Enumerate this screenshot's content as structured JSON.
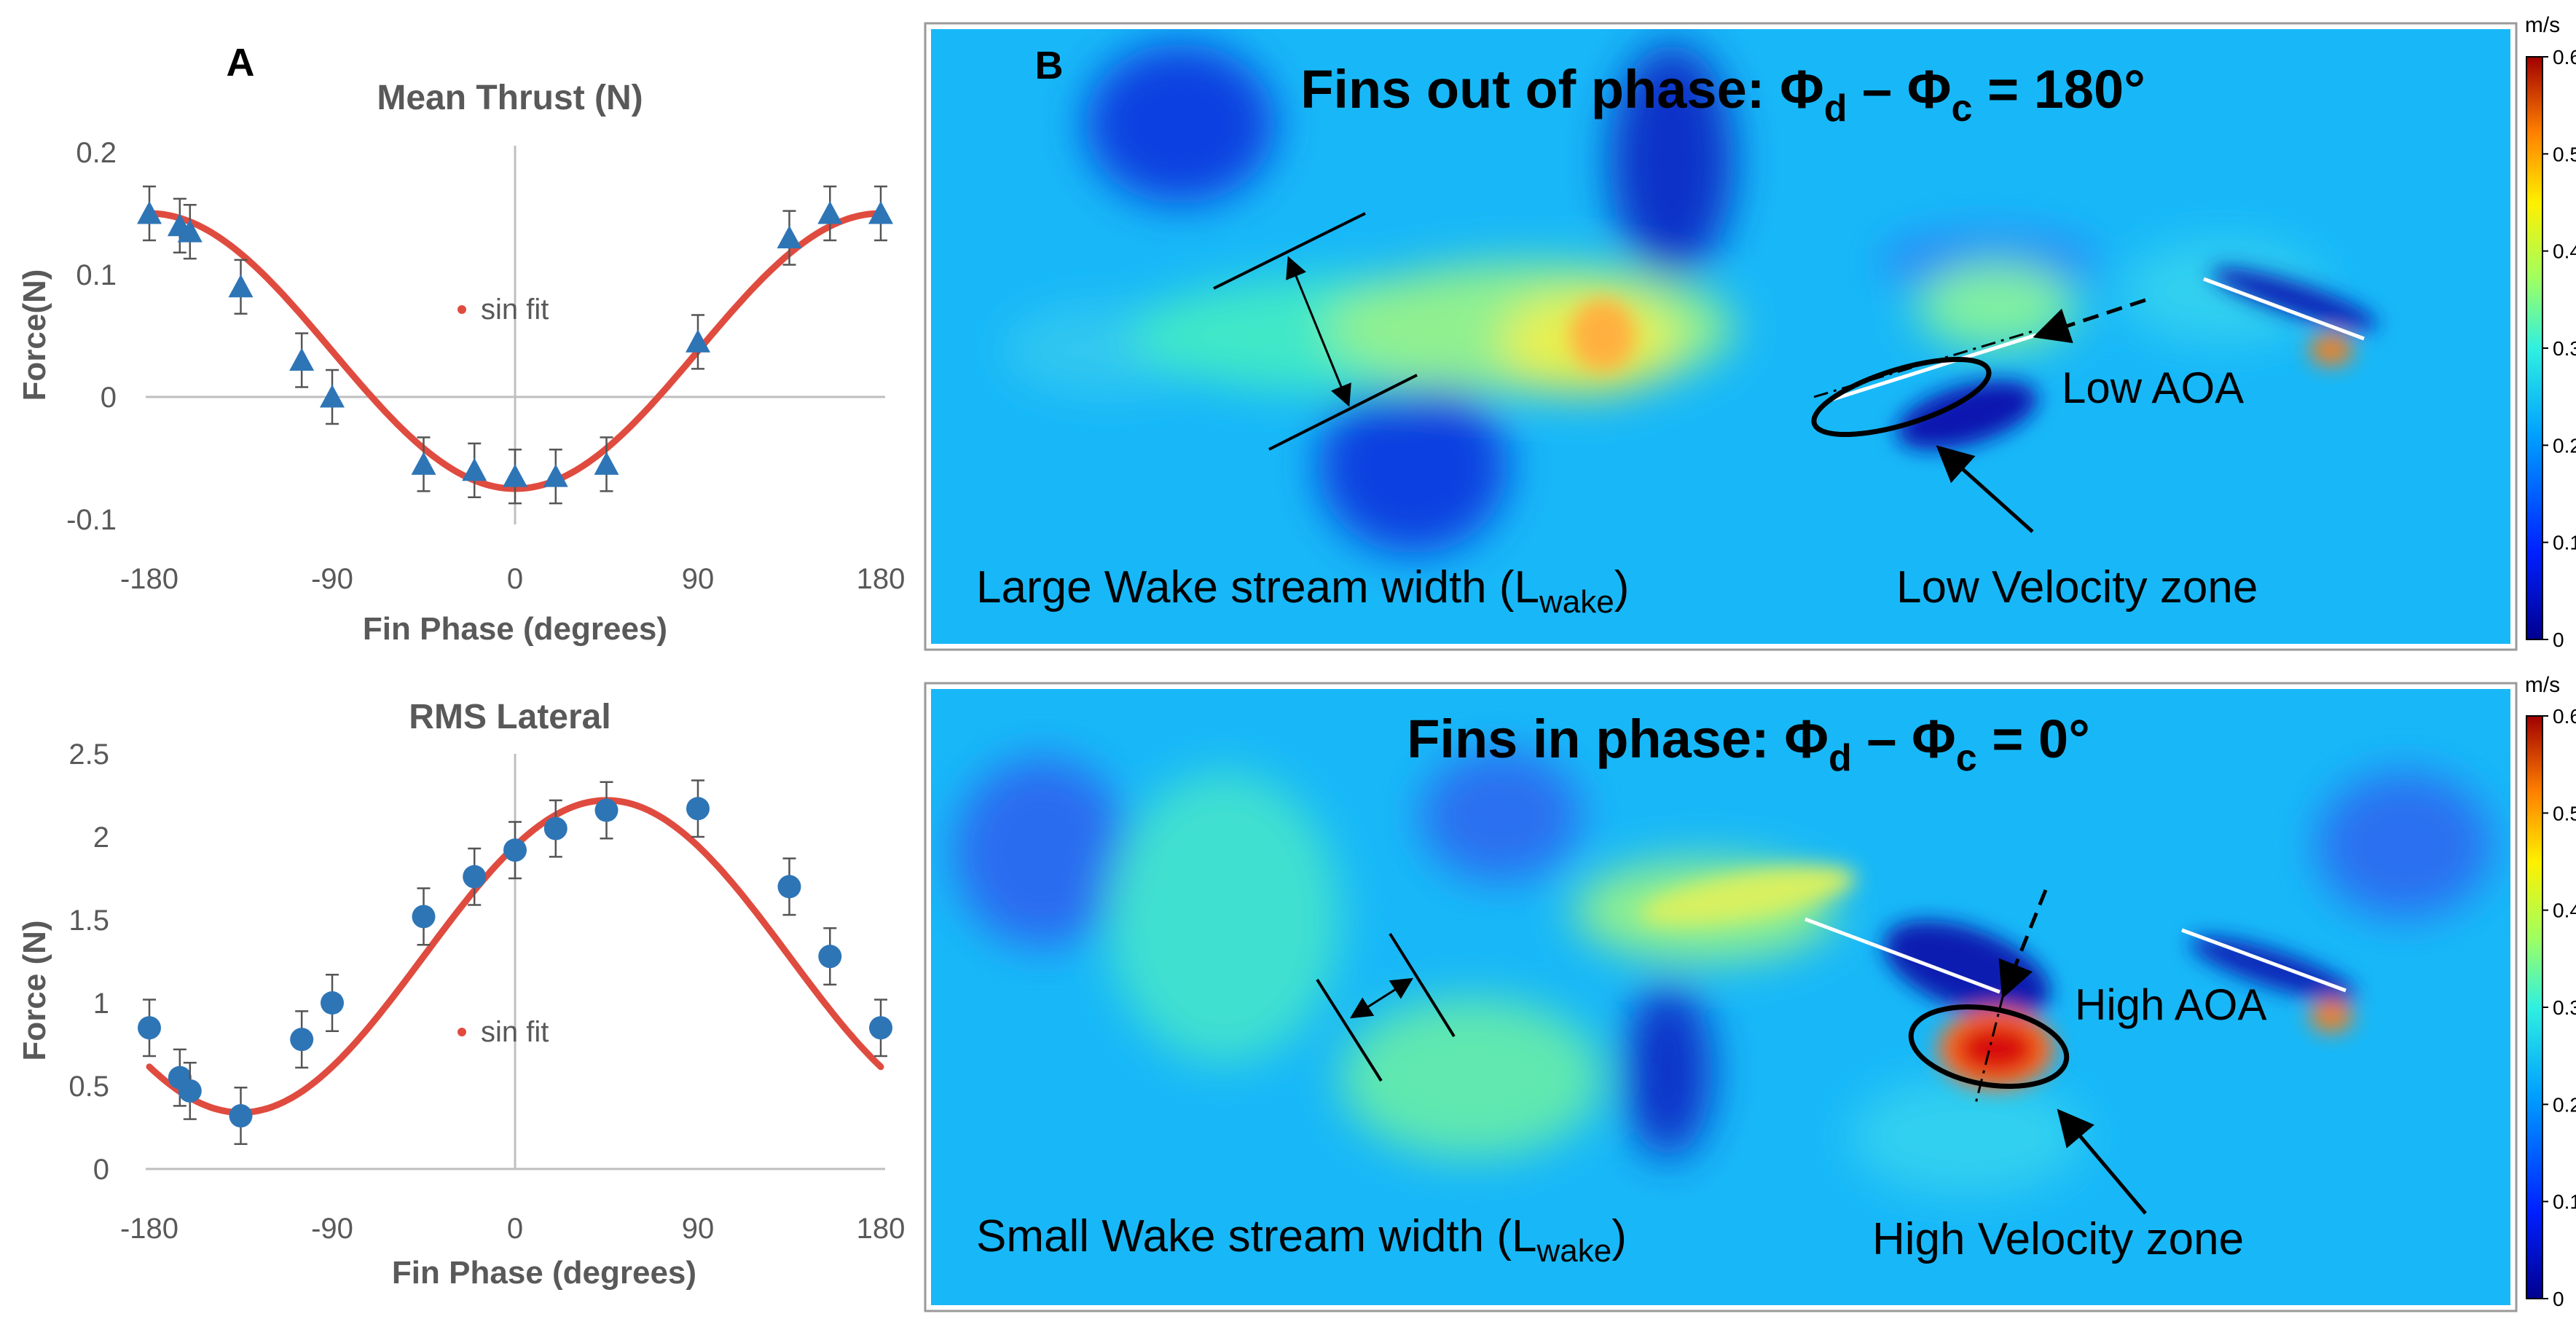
{
  "chart_data": [
    {
      "type": "scatter",
      "panel_letter": "A",
      "title": "Mean Thrust (N)",
      "xlabel": "Fin Phase (degrees)",
      "ylabel": "Force(N)",
      "xlim": [
        -180,
        180
      ],
      "ylim": [
        -0.1,
        0.2
      ],
      "xticks": [
        -180,
        -90,
        0,
        90,
        180
      ],
      "xtick_labels": [
        "-180",
        "-90",
        "0",
        "90",
        "180"
      ],
      "yticks": [
        -0.1,
        0,
        0.1,
        0.2
      ],
      "ytick_labels": [
        "-0.1",
        "0",
        "0.1",
        "0.2"
      ],
      "legend": "sin fit",
      "legend_position": "center-left",
      "marker": "triangle",
      "marker_color": "#2E75B6",
      "fit_color": "#E04B3F",
      "points": [
        {
          "x": -180,
          "y": 0.15,
          "err": 0.022
        },
        {
          "x": -165,
          "y": 0.14,
          "err": 0.022
        },
        {
          "x": -160,
          "y": 0.135,
          "err": 0.022
        },
        {
          "x": -135,
          "y": 0.09,
          "err": 0.022
        },
        {
          "x": -105,
          "y": 0.03,
          "err": 0.022
        },
        {
          "x": -90,
          "y": 0.0,
          "err": 0.022
        },
        {
          "x": -45,
          "y": -0.055,
          "err": 0.022
        },
        {
          "x": -20,
          "y": -0.06,
          "err": 0.022
        },
        {
          "x": 0,
          "y": -0.065,
          "err": 0.022
        },
        {
          "x": 20,
          "y": -0.065,
          "err": 0.022
        },
        {
          "x": 45,
          "y": -0.055,
          "err": 0.022
        },
        {
          "x": 90,
          "y": 0.045,
          "err": 0.022
        },
        {
          "x": 135,
          "y": 0.13,
          "err": 0.022
        },
        {
          "x": 155,
          "y": 0.15,
          "err": 0.022
        },
        {
          "x": 180,
          "y": 0.15,
          "err": 0.022
        }
      ],
      "fit": {
        "model": "offset + amplitude*cos(x - phase)",
        "offset": 0.0375,
        "amplitude": 0.1125,
        "phase_deg": 180
      }
    },
    {
      "type": "scatter",
      "title": "RMS Lateral",
      "xlabel": "Fin Phase (degrees)",
      "ylabel": "Force (N)",
      "xlim": [
        -180,
        180
      ],
      "ylim": [
        0,
        2.5
      ],
      "xticks": [
        -180,
        -90,
        0,
        90,
        180
      ],
      "xtick_labels": [
        "-180",
        "-90",
        "0",
        "90",
        "180"
      ],
      "yticks": [
        0,
        0.5,
        1,
        1.5,
        2,
        2.5
      ],
      "ytick_labels": [
        "0",
        "0.5",
        "1",
        "1.5",
        "2",
        "2.5"
      ],
      "legend": "sin fit",
      "legend_position": "center-right",
      "marker": "circle",
      "marker_color": "#2E75B6",
      "fit_color": "#E04B3F",
      "points": [
        {
          "x": -180,
          "y": 0.85,
          "err": 0.17
        },
        {
          "x": -165,
          "y": 0.55,
          "err": 0.17
        },
        {
          "x": -160,
          "y": 0.47,
          "err": 0.17
        },
        {
          "x": -135,
          "y": 0.32,
          "err": 0.17
        },
        {
          "x": -105,
          "y": 0.78,
          "err": 0.17
        },
        {
          "x": -90,
          "y": 1.0,
          "err": 0.17
        },
        {
          "x": -45,
          "y": 1.52,
          "err": 0.17
        },
        {
          "x": -20,
          "y": 1.76,
          "err": 0.17
        },
        {
          "x": 0,
          "y": 1.92,
          "err": 0.17
        },
        {
          "x": 20,
          "y": 2.05,
          "err": 0.17
        },
        {
          "x": 45,
          "y": 2.16,
          "err": 0.17
        },
        {
          "x": 90,
          "y": 2.17,
          "err": 0.17
        },
        {
          "x": 135,
          "y": 1.7,
          "err": 0.17
        },
        {
          "x": 155,
          "y": 1.28,
          "err": 0.17
        },
        {
          "x": 180,
          "y": 0.85,
          "err": 0.17
        }
      ],
      "fit": {
        "model": "offset + amplitude*cos(x - phase)",
        "offset": 1.28,
        "amplitude": 0.94,
        "phase_deg": 45
      }
    },
    {
      "type": "heatmap",
      "panel_letter": "B",
      "panels": [
        {
          "title_main": "Fins out of phase: Φ",
          "title_sub1": "d",
          "title_mid": " – Φ",
          "title_sub2": "c",
          "title_end": " = 180°",
          "annotations": {
            "wake_prefix": "Large Wake stream width (L",
            "wake_sub": "wake",
            "wake_suffix": ")",
            "zone": "Low Velocity zone",
            "aoa": "Low AOA"
          }
        },
        {
          "title_main": "Fins in phase: Φ",
          "title_sub1": "d",
          "title_mid": " – Φ",
          "title_sub2": "c",
          "title_end": " = 0°",
          "annotations": {
            "wake_prefix": "Small Wake stream width (L",
            "wake_sub": "wake",
            "wake_suffix": ")",
            "zone": "High Velocity zone",
            "aoa": "High AOA"
          }
        }
      ],
      "colorbar": {
        "unit": "m/s",
        "range": [
          0,
          0.6
        ],
        "ticks": [
          0,
          0.1,
          0.2,
          0.3,
          0.4,
          0.5,
          0.6
        ],
        "tick_labels": [
          "0",
          "0.1",
          "0.2",
          "0.3",
          "0.4",
          "0.5",
          "0.6"
        ]
      }
    }
  ]
}
